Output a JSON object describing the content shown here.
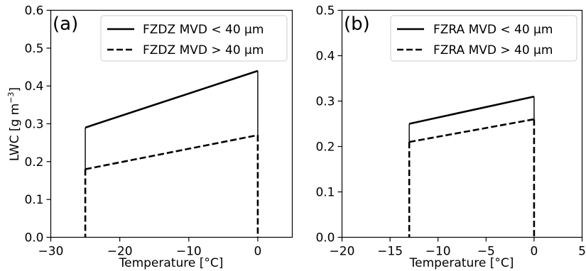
{
  "chart_data": [
    {
      "type": "line",
      "panel_tag": "(a)",
      "xlabel": "Temperature [°C]",
      "ylabel_main": "LWC [g m",
      "ylabel_sup": "−3",
      "ylabel_close": "]",
      "xlim": [
        -30,
        5
      ],
      "ylim": [
        0,
        0.6
      ],
      "xticks": [
        -30,
        -20,
        -10,
        0
      ],
      "xtick_labels": [
        "−30",
        "−20",
        "−10",
        "0"
      ],
      "yticks": [
        0.0,
        0.1,
        0.2,
        0.3,
        0.4,
        0.5,
        0.6
      ],
      "ytick_labels": [
        "0.0",
        "0.1",
        "0.2",
        "0.3",
        "0.4",
        "0.5",
        "0.6"
      ],
      "legend_position": "top-right",
      "series": [
        {
          "name": "FZDZ MVD < 40 µm",
          "style": "solid",
          "x": [
            -25,
            0
          ],
          "y": [
            0.29,
            0.44
          ]
        },
        {
          "name": "FZDZ MVD > 40 µm",
          "style": "dashed",
          "x": [
            -25,
            0
          ],
          "y": [
            0.18,
            0.27
          ]
        }
      ]
    },
    {
      "type": "line",
      "panel_tag": "(b)",
      "xlabel": "Temperature [°C]",
      "xlim": [
        -20,
        5
      ],
      "ylim": [
        0,
        0.5
      ],
      "xticks": [
        -20,
        -15,
        -10,
        -5,
        0,
        5
      ],
      "xtick_labels": [
        "−20",
        "−15",
        "−10",
        "−5",
        "0",
        "5"
      ],
      "yticks": [
        0.0,
        0.1,
        0.2,
        0.3,
        0.4,
        0.5
      ],
      "ytick_labels": [
        "0.0",
        "0.1",
        "0.2",
        "0.3",
        "0.4",
        "0.5"
      ],
      "legend_position": "top-right",
      "series": [
        {
          "name": "FZRA MVD < 40 µm",
          "style": "solid",
          "x": [
            -13,
            0
          ],
          "y": [
            0.25,
            0.31
          ]
        },
        {
          "name": "FZRA MVD > 40 µm",
          "style": "dashed",
          "x": [
            -13,
            0
          ],
          "y": [
            0.21,
            0.26
          ]
        }
      ]
    }
  ]
}
